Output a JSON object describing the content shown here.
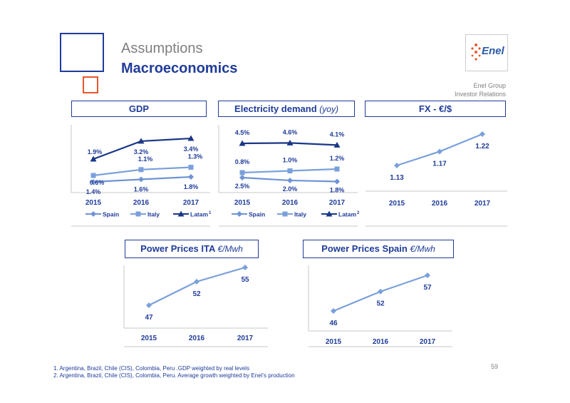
{
  "header": {
    "title": "Assumptions",
    "subtitle": "Macroeconomics",
    "logo_text": "Enel",
    "company_line1": "Enel Group",
    "company_line2": "Investor Relations"
  },
  "colors": {
    "primary": "#1f3c99",
    "dark": "#1a3787",
    "light": "#7aa0db",
    "mid": "#6f93d4",
    "accent": "#e4572e"
  },
  "panels": {
    "gdp": {
      "title": "GDP"
    },
    "demand": {
      "title": "Electricity demand",
      "unit": "(yoy)"
    },
    "fx": {
      "title": "FX - €/$"
    },
    "ita": {
      "title": "Power Prices ITA",
      "unit": "€/Mwh"
    },
    "spain": {
      "title": "Power Prices Spain",
      "unit": "€/Mwh"
    }
  },
  "chart_data": [
    {
      "id": "gdp",
      "type": "line",
      "title": "GDP",
      "categories": [
        "2015",
        "2016",
        "2017"
      ],
      "series": [
        {
          "name": "Spain",
          "values": [
            1.4,
            1.6,
            1.8
          ],
          "labels": [
            "1.4%",
            "1.6%",
            "1.8%"
          ]
        },
        {
          "name": "Italy",
          "values": [
            0.6,
            1.1,
            1.3
          ],
          "labels": [
            "0.6%",
            "1.1%",
            "1.3%"
          ]
        },
        {
          "name": "Latam",
          "footnote": "1",
          "values": [
            1.9,
            3.2,
            3.4
          ],
          "labels": [
            "1.9%",
            "3.2%",
            "3.4%"
          ]
        }
      ]
    },
    {
      "id": "demand",
      "type": "line",
      "title": "Electricity demand (yoy)",
      "categories": [
        "2015",
        "2016",
        "2017"
      ],
      "series": [
        {
          "name": "Spain",
          "values": [
            2.5,
            2.0,
            1.8
          ],
          "labels": [
            "2.5%",
            "2.0%",
            "1.8%"
          ]
        },
        {
          "name": "Italy",
          "values": [
            0.8,
            1.0,
            1.2
          ],
          "labels": [
            "0.8%",
            "1.0%",
            "1.2%"
          ]
        },
        {
          "name": "Latam",
          "footnote": "2",
          "values": [
            4.5,
            4.6,
            4.1
          ],
          "labels": [
            "4.5%",
            "4.6%",
            "4.1%"
          ]
        }
      ]
    },
    {
      "id": "fx",
      "type": "line",
      "title": "FX - €/$",
      "categories": [
        "2015",
        "2016",
        "2017"
      ],
      "series": [
        {
          "values": [
            1.13,
            1.17,
            1.22
          ],
          "labels": [
            "1.13",
            "1.17",
            "1.22"
          ]
        }
      ]
    },
    {
      "id": "ita",
      "type": "line",
      "title": "Power Prices ITA €/Mwh",
      "categories": [
        "2015",
        "2016",
        "2017"
      ],
      "series": [
        {
          "values": [
            47,
            52,
            55
          ],
          "labels": [
            "47",
            "52",
            "55"
          ]
        }
      ]
    },
    {
      "id": "spain",
      "type": "line",
      "title": "Power Prices Spain €/Mwh",
      "categories": [
        "2015",
        "2016",
        "2017"
      ],
      "series": [
        {
          "values": [
            46,
            52,
            57
          ],
          "labels": [
            "46",
            "52",
            "57"
          ]
        }
      ]
    }
  ],
  "footnotes": [
    "1.   Argentina, Brazil, Chile (CIS), Colombia, Peru .GDP weighted by real levels",
    "2.   Argentina, Brazil, Chile (CIS), Colombia, Peru. Average growth weighted by Enel’s production"
  ],
  "page_number": "59"
}
